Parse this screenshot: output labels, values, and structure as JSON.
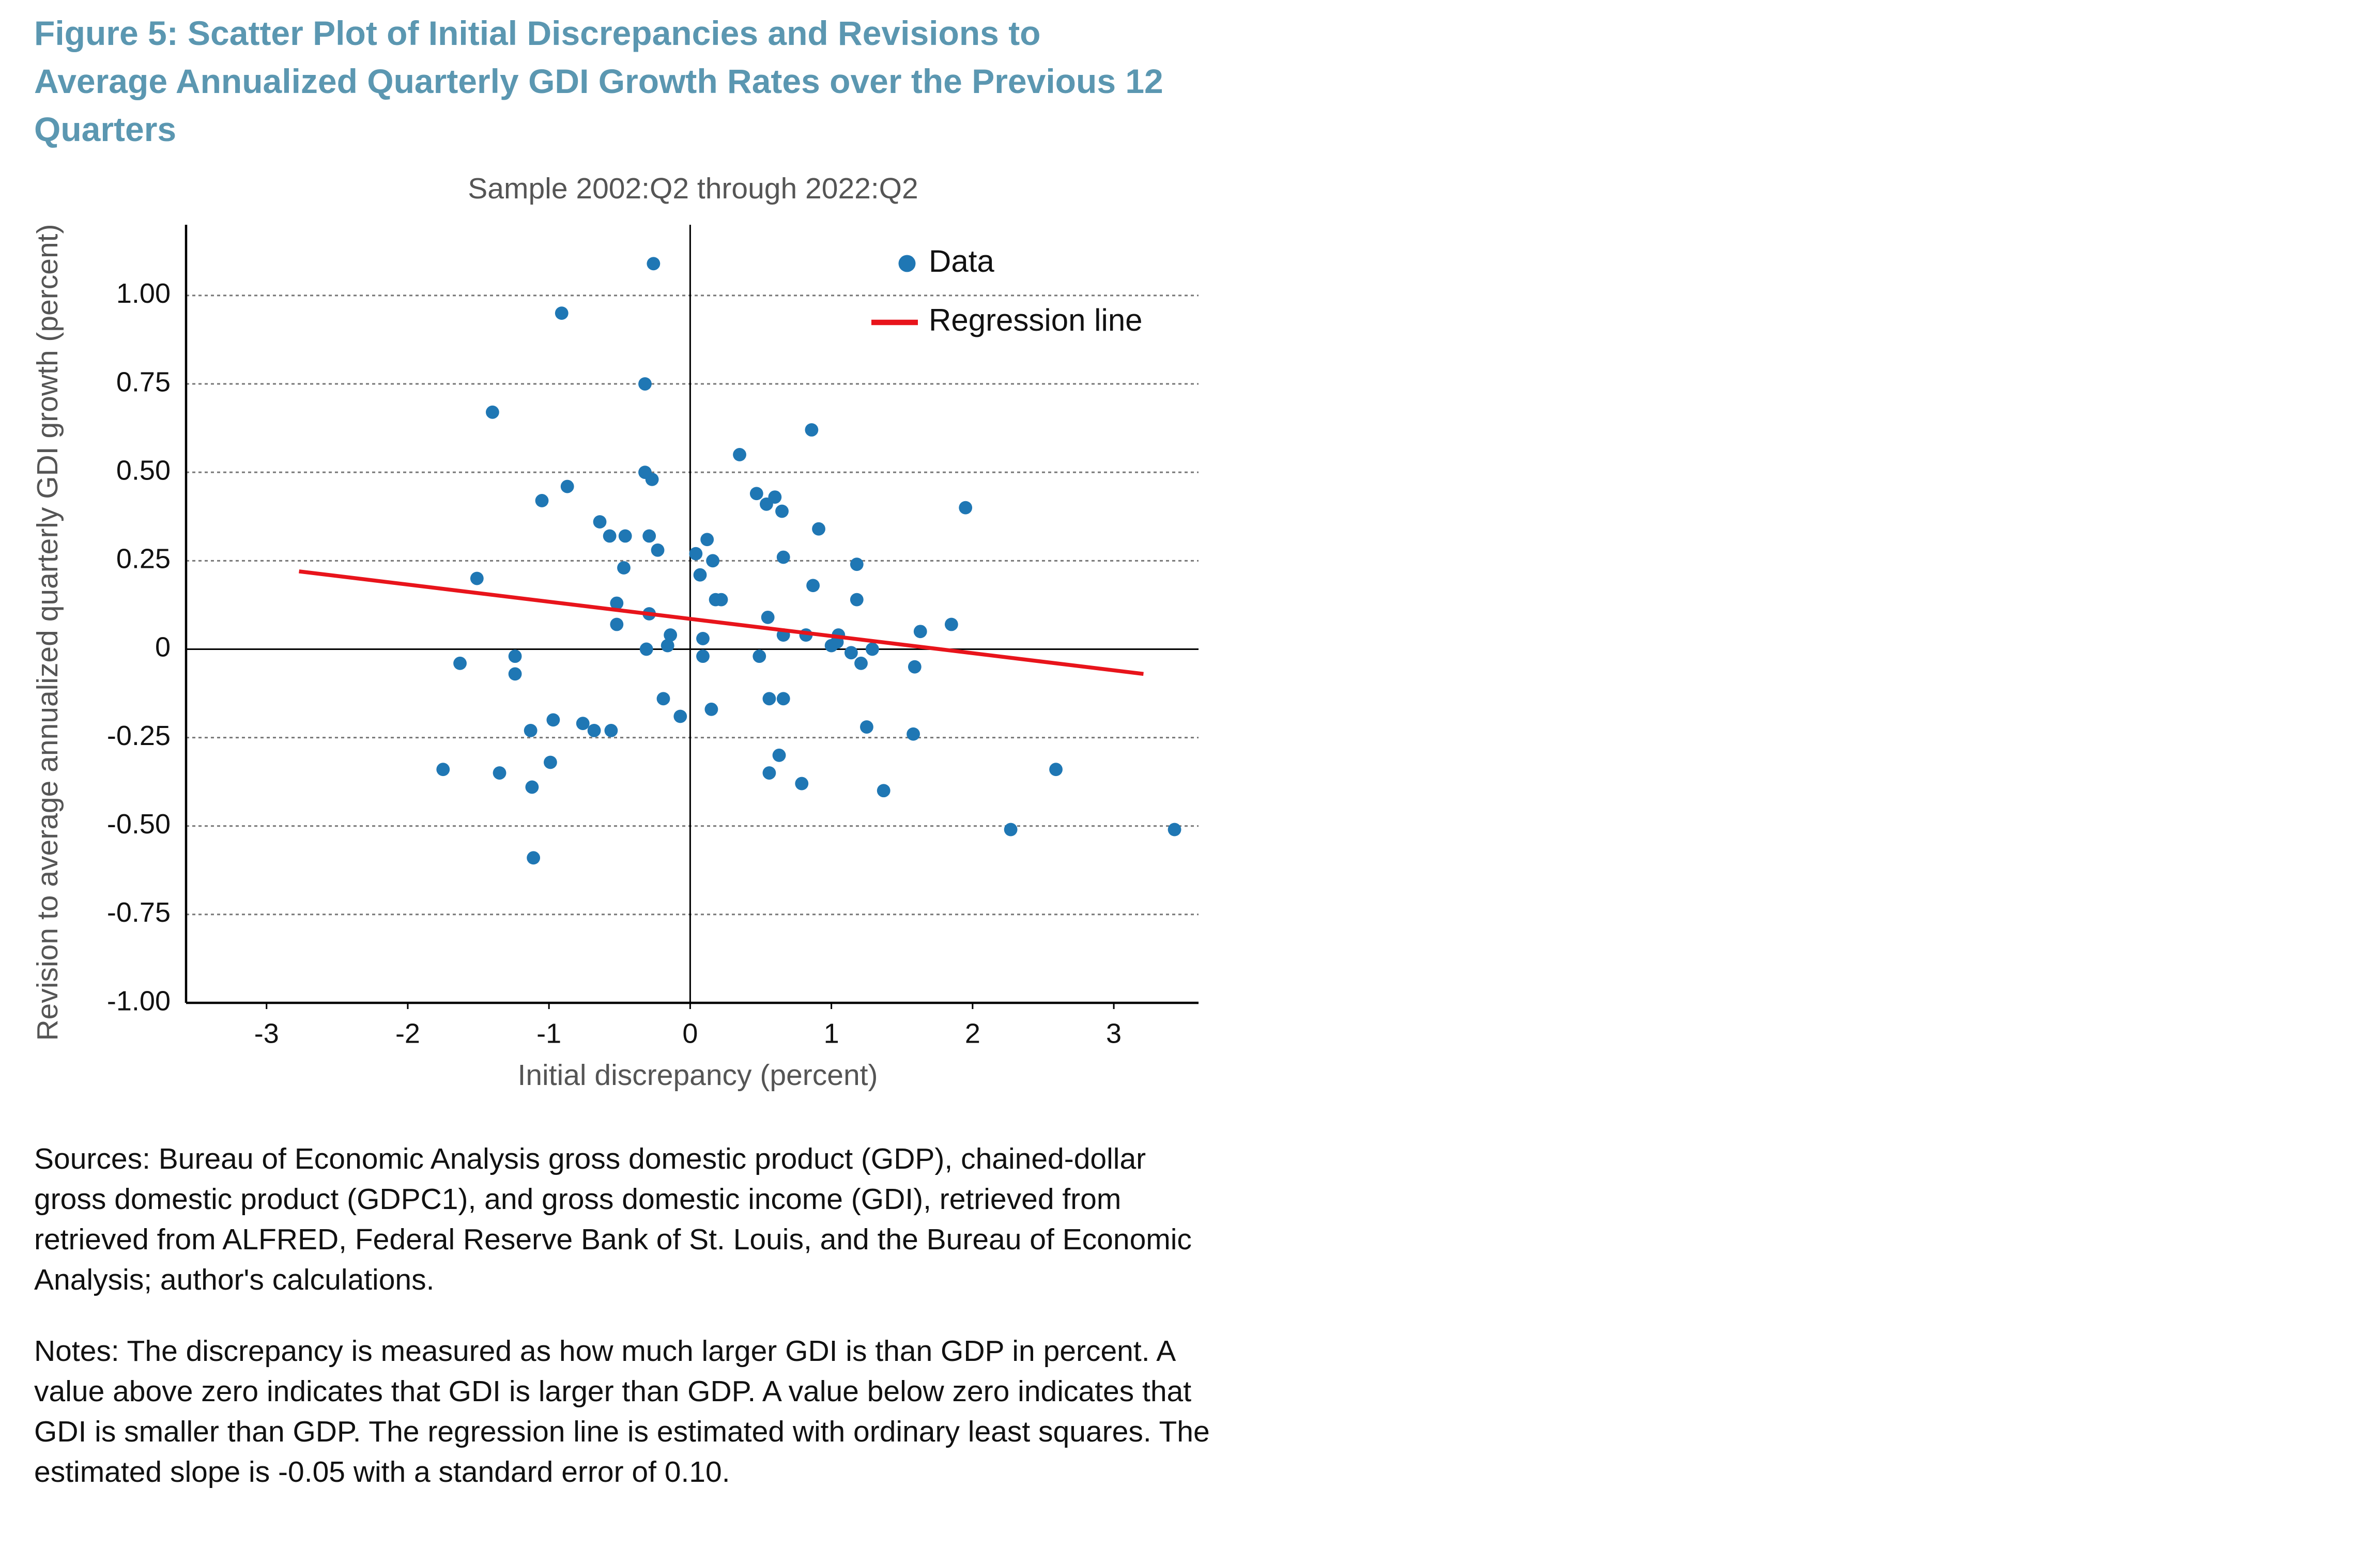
{
  "chart_data": {
    "type": "scatter",
    "title": "Figure 5: Scatter Plot of Initial Discrepancies and Revisions to Average Annualized Quarterly GDI Growth Rates over the Previous 12 Quarters",
    "subtitle": "Sample 2002:Q2 through 2022:Q2",
    "x_label": "Initial discrepancy (percent)",
    "y_label": "Revision to average annualized quarterly GDI growth (percent)",
    "xlim": [
      -3.57,
      3.6
    ],
    "ylim": [
      -1,
      1.2
    ],
    "xticks": [
      -3,
      -2,
      -1,
      0,
      1,
      2,
      3
    ],
    "yticks": [
      {
        "value": -1,
        "label": "-1.00"
      },
      -0.75,
      {
        "value": -0.5,
        "label": "-0.50"
      },
      -0.25,
      0,
      0.25,
      {
        "value": 0.5,
        "label": "0.50"
      },
      0.75,
      {
        "value": 1,
        "label": "1.00"
      }
    ],
    "grid": true,
    "legend": "upper right",
    "series": [
      {
        "name": "Data",
        "type": "scatter",
        "color": "#1f77b4",
        "x": [
          -0.26,
          -0.91,
          -0.32,
          -1.4,
          0.86,
          0.35,
          -0.32,
          -0.27,
          -0.87,
          0.47,
          0.6,
          0.54,
          -1.05,
          0.65,
          1.95,
          -0.64,
          0.91,
          -0.46,
          -0.57,
          -0.29,
          0.12,
          -0.23,
          0.04,
          0.66,
          0.16,
          1.18,
          -0.47,
          0.07,
          -1.51,
          0.87,
          0.18,
          0.22,
          1.18,
          -0.52,
          -0.29,
          0.55,
          -0.52,
          1.85,
          0.66,
          -0.14,
          1.63,
          0.82,
          1.05,
          0.09,
          1.04,
          1.0,
          -0.31,
          -0.16,
          1.29,
          1.14,
          0.09,
          0.49,
          -1.24,
          1.21,
          1.59,
          -1.63,
          -1.24,
          -0.19,
          0.56,
          0.66,
          0.15,
          -0.07,
          -0.76,
          -0.97,
          -0.68,
          -0.56,
          -1.13,
          1.25,
          1.58,
          0.63,
          -0.99,
          -1.75,
          -1.35,
          0.56,
          2.59,
          -1.12,
          0.79,
          1.37,
          2.27,
          3.43,
          -1.11
        ],
        "y": [
          1.09,
          0.95,
          0.75,
          0.67,
          0.62,
          0.55,
          0.5,
          0.48,
          0.46,
          0.44,
          0.43,
          0.41,
          0.42,
          0.39,
          0.4,
          0.36,
          0.34,
          0.32,
          0.32,
          0.32,
          0.31,
          0.28,
          0.27,
          0.26,
          0.25,
          0.24,
          0.23,
          0.21,
          0.2,
          0.18,
          0.14,
          0.14,
          0.14,
          0.13,
          0.1,
          0.09,
          0.07,
          0.07,
          0.04,
          0.04,
          0.05,
          0.04,
          0.04,
          0.03,
          0.02,
          0.01,
          0.0,
          0.01,
          0.0,
          -0.01,
          -0.02,
          -0.02,
          -0.02,
          -0.04,
          -0.05,
          -0.04,
          -0.07,
          -0.14,
          -0.14,
          -0.14,
          -0.17,
          -0.19,
          -0.21,
          -0.2,
          -0.23,
          -0.23,
          -0.23,
          -0.22,
          -0.24,
          -0.3,
          -0.32,
          -0.34,
          -0.35,
          -0.35,
          -0.34,
          -0.39,
          -0.38,
          -0.4,
          -0.51,
          -0.51,
          -0.59
        ]
      },
      {
        "name": "Regression line",
        "type": "line",
        "color": "#e8141b",
        "x": [
          -2.77,
          3.21
        ],
        "y": [
          0.22,
          -0.07
        ]
      }
    ],
    "sources": "Sources: Bureau of Economic Analysis gross domestic product (GDP), chained-dollar gross domestic product (GDPC1), and gross domestic income (GDI), retrieved from retrieved from ALFRED, Federal Reserve Bank of St. Louis, and the Bureau of Economic Analysis; author's calculations.",
    "notes": "Notes: The discrepancy is measured as how much larger GDI is than GDP in percent. A value above zero indicates that GDI is larger than GDP. A value below zero indicates that GDI is smaller than GDP. The regression line is estimated with ordinary least squares. The estimated slope is -0.05 with a standard error of 0.10."
  }
}
